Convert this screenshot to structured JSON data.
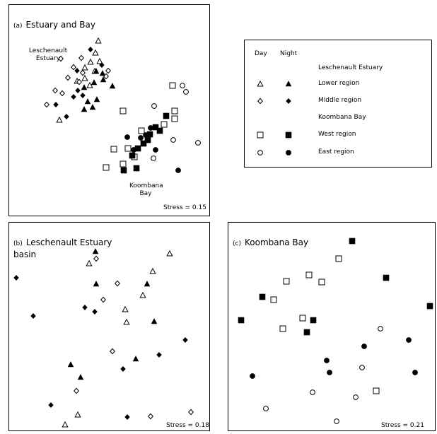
{
  "chart_data": [
    {
      "type": "scatter",
      "panel": "(a)",
      "title": "Estuary and Bay",
      "stress": "Stress = 0.15",
      "annotations": [
        "Leschenault\nEstuary",
        "Koombana\nBay"
      ],
      "series": [
        {
          "name": "Lower region (Day)",
          "marker": "triangle-open",
          "points": [
            [
              139,
              58
            ],
            [
              135,
              75
            ],
            [
              128,
              88
            ],
            [
              141,
              87
            ],
            [
              134,
              101
            ],
            [
              120,
              96
            ],
            [
              109,
              115
            ],
            [
              127,
              121
            ],
            [
              120,
              111
            ],
            [
              84,
              170
            ]
          ]
        },
        {
          "name": "Lower region (Night)",
          "marker": "triangle-filled",
          "points": [
            [
              136,
              101
            ],
            [
              145,
              104
            ],
            [
              133,
              117
            ],
            [
              119,
              124
            ],
            [
              159,
              122
            ],
            [
              124,
              144
            ],
            [
              131,
              152
            ],
            [
              119,
              155
            ],
            [
              146,
              113
            ],
            [
              137,
              141
            ]
          ]
        },
        {
          "name": "Middle region (Day)",
          "marker": "diamond-open",
          "points": [
            [
              86,
              83
            ],
            [
              96,
              110
            ],
            [
              112,
              116
            ],
            [
              117,
              103
            ],
            [
              150,
              108
            ],
            [
              153,
              100
            ],
            [
              78,
              128
            ],
            [
              88,
              132
            ],
            [
              66,
              148
            ],
            [
              104,
              95
            ],
            [
              115,
              82
            ]
          ]
        },
        {
          "name": "Middle region (Night)",
          "marker": "diamond-filled",
          "points": [
            [
              128,
              70
            ],
            [
              109,
              100
            ],
            [
              79,
              148
            ],
            [
              94,
              165
            ],
            [
              104,
              137
            ],
            [
              117,
              135
            ],
            [
              110,
              128
            ],
            [
              144,
              92
            ]
          ]
        },
        {
          "name": "West region (Day)",
          "marker": "square-open",
          "points": [
            [
              244,
              121
            ],
            [
              174,
              157
            ],
            [
              247,
              157
            ],
            [
              232,
              176
            ],
            [
              200,
              185
            ],
            [
              181,
              210
            ],
            [
              161,
              211
            ],
            [
              247,
              168
            ],
            [
              190,
              222
            ],
            [
              150,
              237
            ],
            [
              174,
              232
            ]
          ]
        },
        {
          "name": "West region (Night)",
          "marker": "square-filled",
          "points": [
            [
              235,
              164
            ],
            [
              220,
              180
            ],
            [
              212,
              190
            ],
            [
              209,
              198
            ],
            [
              203,
              203
            ],
            [
              195,
              210
            ],
            [
              187,
              220
            ],
            [
              175,
              241
            ],
            [
              193,
              238
            ],
            [
              226,
              185
            ]
          ]
        },
        {
          "name": "East region (Day)",
          "marker": "circle-open",
          "points": [
            [
              263,
              130
            ],
            [
              258,
              121
            ],
            [
              218,
              150
            ],
            [
              280,
              202
            ],
            [
              217,
              224
            ],
            [
              245,
              198
            ]
          ]
        },
        {
          "name": "East region (Night)",
          "marker": "circle-filled",
          "points": [
            [
              206,
              191
            ],
            [
              180,
              194
            ],
            [
              189,
              212
            ],
            [
              220,
              212
            ],
            [
              252,
              241
            ],
            [
              199,
              195
            ],
            [
              213,
              181
            ]
          ]
        }
      ]
    },
    {
      "type": "scatter",
      "panel": "(b)",
      "title": "Leschenault Estuary\nbasin",
      "stress": "Stress = 0.18",
      "series": [
        {
          "name": "Lower region (Day)",
          "marker": "triangle-open",
          "points": [
            [
              240,
              359
            ],
            [
              126,
              373
            ],
            [
              216,
              384
            ],
            [
              202,
              418
            ],
            [
              177,
              438
            ],
            [
              179,
              456
            ],
            [
              110,
              587
            ],
            [
              92,
              601
            ]
          ]
        },
        {
          "name": "Lower region (Night)",
          "marker": "triangle-filled",
          "points": [
            [
              135,
              356
            ],
            [
              136,
              402
            ],
            [
              208,
              402
            ],
            [
              218,
              455
            ],
            [
              192,
              508
            ],
            [
              100,
              516
            ],
            [
              114,
              534
            ]
          ]
        },
        {
          "name": "Middle region (Day)",
          "marker": "diamond-open",
          "points": [
            [
              136,
              366
            ],
            [
              166,
              401
            ],
            [
              146,
              424
            ],
            [
              159,
              497
            ],
            [
              108,
              553
            ],
            [
              213,
              589
            ],
            [
              270,
              583
            ]
          ]
        },
        {
          "name": "Middle region (Night)",
          "marker": "diamond-filled",
          "points": [
            [
              23,
              393
            ],
            [
              120,
              435
            ],
            [
              47,
              447
            ],
            [
              134,
              441
            ],
            [
              262,
              481
            ],
            [
              225,
              502
            ],
            [
              174,
              522
            ],
            [
              72,
              573
            ],
            [
              180,
              590
            ]
          ]
        }
      ]
    },
    {
      "type": "scatter",
      "panel": "(c)",
      "title": "Koombana Bay",
      "stress": "Stress = 0.21",
      "series": [
        {
          "name": "West region (Day)",
          "marker": "square-open",
          "points": [
            [
              479,
              366
            ],
            [
              437,
              389
            ],
            [
              405,
              398
            ],
            [
              455,
              399
            ],
            [
              387,
              424
            ],
            [
              428,
              450
            ],
            [
              400,
              465
            ],
            [
              532,
              553
            ]
          ]
        },
        {
          "name": "West region (Night)",
          "marker": "square-filled",
          "points": [
            [
              498,
              341
            ],
            [
              546,
              393
            ],
            [
              371,
              420
            ],
            [
              608,
              433
            ],
            [
              341,
              453
            ],
            [
              443,
              453
            ],
            [
              434,
              470
            ]
          ]
        },
        {
          "name": "East region (Day)",
          "marker": "circle-open",
          "points": [
            [
              538,
              465
            ],
            [
              512,
              520
            ],
            [
              442,
              555
            ],
            [
              503,
              562
            ],
            [
              376,
              578
            ],
            [
              476,
              596
            ]
          ]
        },
        {
          "name": "East region (Night)",
          "marker": "circle-filled",
          "points": [
            [
              515,
              490
            ],
            [
              578,
              481
            ],
            [
              462,
              510
            ],
            [
              466,
              527
            ],
            [
              587,
              527
            ],
            [
              357,
              532
            ]
          ]
        }
      ]
    }
  ],
  "legend": {
    "col_day": "Day",
    "col_night": "Night",
    "group_estuary": "Leschenault Estuary",
    "lower": "Lower region",
    "middle": "Middle region",
    "group_bay": "Koombana Bay",
    "west": "West region",
    "east": "East region"
  }
}
